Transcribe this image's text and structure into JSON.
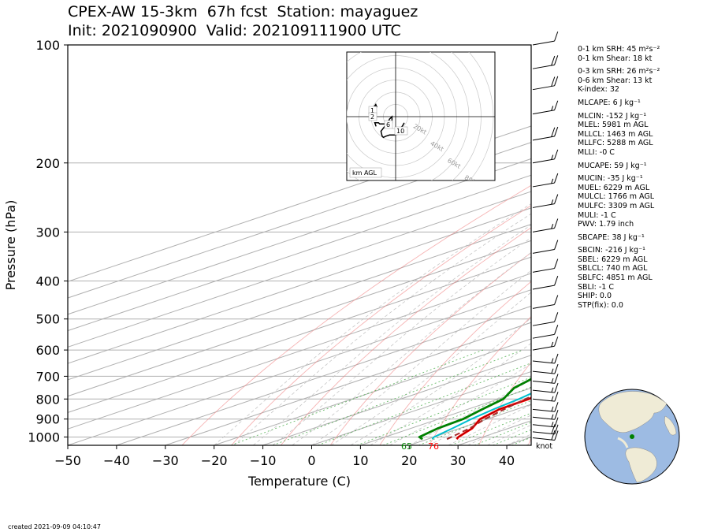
{
  "header": {
    "title_line1": "CPEX-AW 15-3km  67h fcst  Station: mayaguez",
    "title_line2": "Init: 2021090900  Valid: 202109111900 UTC"
  },
  "footer": {
    "created": "created 2021-09-09 04:10:47"
  },
  "indices": [
    {
      "text": "0-1 km SRH: 45 m²s⁻²",
      "gap": false
    },
    {
      "text": "0-1 km Shear: 18 kt",
      "gap": false
    },
    {
      "text": "0-3 km SRH: 26 m²s⁻²",
      "gap": true
    },
    {
      "text": "0-6 km Shear: 13 kt",
      "gap": false
    },
    {
      "text": "K-index: 32",
      "gap": false
    },
    {
      "text": "MLCAPE: 6 J kg⁻¹",
      "gap": true
    },
    {
      "text": "MLCIN: -152 J kg⁻¹",
      "gap": true
    },
    {
      "text": "MLEL: 5981 m AGL",
      "gap": false
    },
    {
      "text": "MLLCL: 1463 m AGL",
      "gap": false
    },
    {
      "text": "MLLFC: 5288 m AGL",
      "gap": false
    },
    {
      "text": "MLLI: -0 C",
      "gap": false
    },
    {
      "text": "MUCAPE: 59 J kg⁻¹",
      "gap": true
    },
    {
      "text": "MUCIN: -35 J kg⁻¹",
      "gap": true
    },
    {
      "text": "MUEL: 6229 m AGL",
      "gap": false
    },
    {
      "text": "MULCL: 1766 m AGL",
      "gap": false
    },
    {
      "text": "MULFC: 3309 m AGL",
      "gap": false
    },
    {
      "text": "MULI: -1 C",
      "gap": false
    },
    {
      "text": "PWV: 1.79 inch",
      "gap": false
    },
    {
      "text": "SBCAPE: 38 J kg⁻¹",
      "gap": true
    },
    {
      "text": "SBCIN: -216 J kg⁻¹",
      "gap": true
    },
    {
      "text": "SBEL: 6229 m AGL",
      "gap": false
    },
    {
      "text": "SBLCL: 740 m AGL",
      "gap": false
    },
    {
      "text": "SBLFC: 4851 m AGL",
      "gap": false
    },
    {
      "text": "SBLI: -1 C",
      "gap": false
    },
    {
      "text": "SHIP: 0.0",
      "gap": false
    },
    {
      "text": "STP(fix): 0.0",
      "gap": false
    }
  ],
  "chart_data": {
    "type": "line",
    "xlabel": "Temperature (C)",
    "ylabel": "Pressure (hPa)",
    "xlim": [
      -50,
      45
    ],
    "ylim": [
      1050,
      100
    ],
    "x_ticks": [
      "−50",
      "−40",
      "−30",
      "−20",
      "−10",
      "0",
      "10",
      "20",
      "30",
      "40"
    ],
    "x_tick_values": [
      -50,
      -40,
      -30,
      -20,
      -10,
      0,
      10,
      20,
      30,
      40
    ],
    "y_ticks": [
      "100",
      "200",
      "300",
      "400",
      "500",
      "600",
      "700",
      "800",
      "900",
      "1000"
    ],
    "y_tick_values": [
      100,
      200,
      300,
      400,
      500,
      600,
      700,
      800,
      900,
      1000
    ],
    "skew_deg_per_log": 104,
    "surface_labels": {
      "dewpoint": "65",
      "temperature": "76"
    },
    "wind_unit_label": "knot",
    "colors": {
      "temperature": "#ff0000",
      "dewpoint": "#008000",
      "wetbulb": "#00bfcf",
      "parcel": "#a52a2a",
      "dry_adiabat": "#f08080",
      "moist_adiabat": "#c0c0c0",
      "mixing_ratio": "#2ca02c",
      "isotherm": "#b0b0b0"
    },
    "series": [
      {
        "key": "temperature",
        "x": [
          26.0,
          25.0,
          22.5,
          18.5,
          16.5,
          16.2,
          14.5,
          12.5,
          9.0,
          5.0,
          0.0,
          -6.5,
          -14.0,
          -22.0,
          -28.0,
          -36.5,
          -45.0,
          -54.0,
          -63.0,
          -70.5,
          -76.0,
          -80.5
        ],
        "y": [
          1013,
          1000,
          950,
          900,
          850,
          800,
          750,
          700,
          600,
          500,
          450,
          400,
          350,
          300,
          260,
          225,
          200,
          180,
          160,
          140,
          120,
          100
        ]
      },
      {
        "key": "wetbulb",
        "x": [
          21.0,
          20.0,
          18.5,
          16.7,
          15.3,
          14.2,
          12.5,
          10.0,
          6.0,
          2.0,
          -3.5,
          -10.0,
          -16.5,
          -24.5,
          -30.0,
          -38.0,
          -46.0,
          -55.0,
          -64.0,
          -72.0,
          -78.0,
          -82.5
        ],
        "y": [
          1013,
          1000,
          950,
          900,
          850,
          800,
          750,
          700,
          600,
          500,
          450,
          400,
          350,
          300,
          260,
          225,
          200,
          180,
          160,
          140,
          120,
          100
        ]
      },
      {
        "key": "dewpoint",
        "x": [
          19.0,
          17.0,
          15.5,
          15.0,
          13.0,
          11.0,
          6.5,
          4.0,
          3.0,
          3.0,
          0.0,
          -11.0,
          -17.0,
          -25.5,
          -33.0,
          -41.0,
          -49.0,
          -59.0,
          -71.0,
          -79.0,
          -87.0,
          -92.0
        ],
        "y": [
          1013,
          1000,
          950,
          900,
          850,
          800,
          750,
          700,
          600,
          500,
          450,
          400,
          350,
          300,
          260,
          225,
          200,
          180,
          160,
          140,
          120,
          100
        ]
      },
      {
        "key": "parcel",
        "x": [
          24.0,
          22.0,
          19.5,
          17.5,
          15.5,
          14.2,
          12.0,
          9.5,
          5.0,
          -1.0,
          -7.0,
          -15.0,
          -24.0,
          -36.0,
          -50.0,
          -65.0,
          -83.0
        ],
        "y": [
          1013,
          950,
          900,
          850,
          800,
          750,
          700,
          600,
          500,
          450,
          400,
          350,
          300,
          250,
          200,
          150,
          100
        ]
      }
    ],
    "wind_barbs": [
      {
        "p": 1005,
        "speed_kt": 20
      },
      {
        "p": 970,
        "speed_kt": 20
      },
      {
        "p": 930,
        "speed_kt": 15
      },
      {
        "p": 890,
        "speed_kt": 15
      },
      {
        "p": 850,
        "speed_kt": 15
      },
      {
        "p": 800,
        "speed_kt": 15
      },
      {
        "p": 760,
        "speed_kt": 15
      },
      {
        "p": 720,
        "speed_kt": 15
      },
      {
        "p": 680,
        "speed_kt": 15
      },
      {
        "p": 640,
        "speed_kt": 15
      },
      {
        "p": 600,
        "speed_kt": 15
      },
      {
        "p": 560,
        "speed_kt": 10
      },
      {
        "p": 520,
        "speed_kt": 10
      },
      {
        "p": 470,
        "speed_kt": 10
      },
      {
        "p": 420,
        "speed_kt": 10
      },
      {
        "p": 380,
        "speed_kt": 10
      },
      {
        "p": 340,
        "speed_kt": 10
      },
      {
        "p": 300,
        "speed_kt": 15
      },
      {
        "p": 260,
        "speed_kt": 15
      },
      {
        "p": 230,
        "speed_kt": 15
      },
      {
        "p": 200,
        "speed_kt": 15
      },
      {
        "p": 175,
        "speed_kt": 20
      },
      {
        "p": 150,
        "speed_kt": 15
      },
      {
        "p": 130,
        "speed_kt": 20
      },
      {
        "p": 115,
        "speed_kt": 20
      },
      {
        "p": 100,
        "speed_kt": 10
      }
    ],
    "hodograph": {
      "unit_label": "km AGL",
      "range_labels": [
        "20kt",
        "40kt",
        "60kt",
        "80kt"
      ],
      "height_labels": [
        "1",
        "2",
        "6",
        "10"
      ],
      "u_kt": [
        7,
        6,
        4,
        3,
        -1,
        -5,
        -8,
        -10,
        -11,
        -12,
        -9,
        -6,
        -5,
        -3,
        -3,
        -8,
        -13,
        -14,
        -17,
        -16
      ],
      "v_kt": [
        5,
        7,
        10,
        14,
        15,
        15,
        16,
        17,
        16,
        12,
        8,
        4,
        2,
        0,
        5,
        6,
        6,
        5,
        5,
        8
      ]
    },
    "globe": {
      "station_lat": 18.2,
      "station_lon": -67.1,
      "land_color": "#efebd6",
      "ocean_color": "#9dbbe3",
      "marker_color": "#008000"
    }
  }
}
